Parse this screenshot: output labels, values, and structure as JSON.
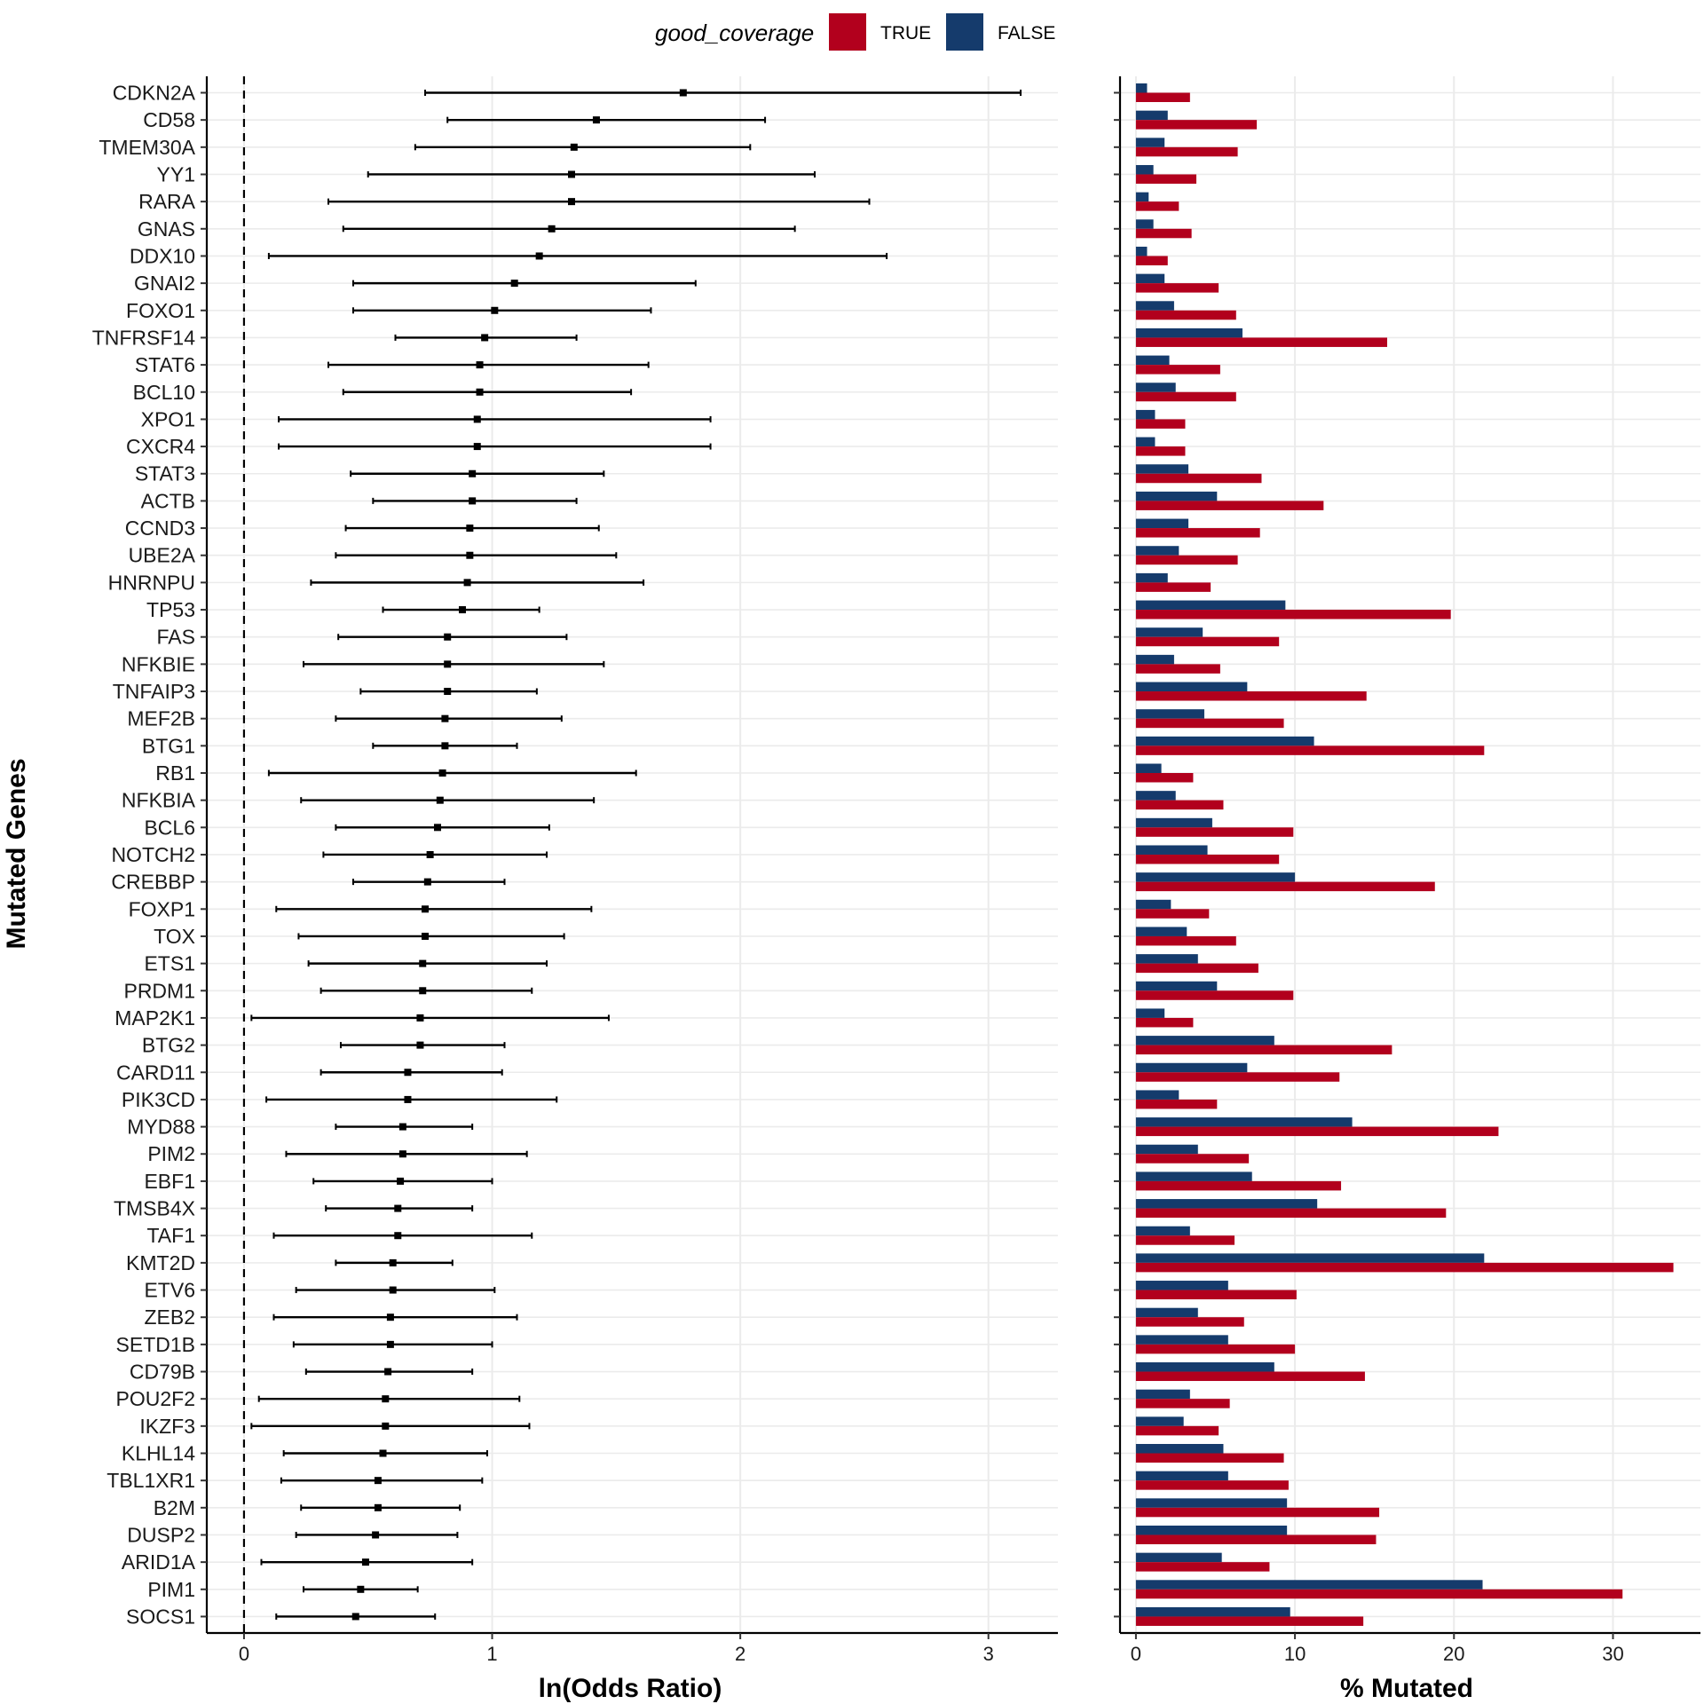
{
  "chart_data": [
    {
      "type": "forest",
      "title": "",
      "xlabel": "ln(Odds Ratio)",
      "ylabel": "Mutated Genes",
      "xlim": [
        -0.15,
        3.28
      ],
      "xticks": [
        "0",
        "1",
        "2",
        "3"
      ],
      "reference_line": 0,
      "grid": true,
      "genes": [
        "CDKN2A",
        "CD58",
        "TMEM30A",
        "YY1",
        "RARA",
        "GNAS",
        "DDX10",
        "GNAI2",
        "FOXO1",
        "TNFRSF14",
        "STAT6",
        "BCL10",
        "XPO1",
        "CXCR4",
        "STAT3",
        "ACTB",
        "CCND3",
        "UBE2A",
        "HNRNPU",
        "TP53",
        "FAS",
        "NFKBIE",
        "TNFAIP3",
        "MEF2B",
        "BTG1",
        "RB1",
        "NFKBIA",
        "BCL6",
        "NOTCH2",
        "CREBBP",
        "FOXP1",
        "TOX",
        "ETS1",
        "PRDM1",
        "MAP2K1",
        "BTG2",
        "CARD11",
        "PIK3CD",
        "MYD88",
        "PIM2",
        "EBF1",
        "TMSB4X",
        "TAF1",
        "KMT2D",
        "ETV6",
        "ZEB2",
        "SETD1B",
        "CD79B",
        "POU2F2",
        "IKZF3",
        "KLHL14",
        "TBL1XR1",
        "B2M",
        "DUSP2",
        "ARID1A",
        "PIM1",
        "SOCS1"
      ],
      "estimate": [
        1.77,
        1.42,
        1.33,
        1.32,
        1.32,
        1.24,
        1.19,
        1.09,
        1.01,
        0.97,
        0.95,
        0.95,
        0.94,
        0.94,
        0.92,
        0.92,
        0.91,
        0.91,
        0.9,
        0.88,
        0.82,
        0.82,
        0.82,
        0.81,
        0.81,
        0.8,
        0.79,
        0.78,
        0.75,
        0.74,
        0.73,
        0.73,
        0.72,
        0.72,
        0.71,
        0.71,
        0.66,
        0.66,
        0.64,
        0.64,
        0.63,
        0.62,
        0.62,
        0.6,
        0.6,
        0.59,
        0.59,
        0.58,
        0.57,
        0.57,
        0.56,
        0.54,
        0.54,
        0.53,
        0.49,
        0.47,
        0.45
      ],
      "lower": [
        0.73,
        0.82,
        0.69,
        0.5,
        0.34,
        0.4,
        0.1,
        0.44,
        0.44,
        0.61,
        0.34,
        0.4,
        0.14,
        0.14,
        0.43,
        0.52,
        0.41,
        0.37,
        0.27,
        0.56,
        0.38,
        0.24,
        0.47,
        0.37,
        0.52,
        0.1,
        0.23,
        0.37,
        0.32,
        0.44,
        0.13,
        0.22,
        0.26,
        0.31,
        0.03,
        0.39,
        0.31,
        0.09,
        0.37,
        0.17,
        0.28,
        0.33,
        0.12,
        0.37,
        0.21,
        0.12,
        0.2,
        0.25,
        0.06,
        0.03,
        0.16,
        0.15,
        0.23,
        0.21,
        0.07,
        0.24,
        0.13
      ],
      "upper": [
        3.13,
        2.1,
        2.04,
        2.3,
        2.52,
        2.22,
        2.59,
        1.82,
        1.64,
        1.34,
        1.63,
        1.56,
        1.88,
        1.88,
        1.45,
        1.34,
        1.43,
        1.5,
        1.61,
        1.19,
        1.3,
        1.45,
        1.18,
        1.28,
        1.1,
        1.58,
        1.41,
        1.23,
        1.22,
        1.05,
        1.4,
        1.29,
        1.22,
        1.16,
        1.47,
        1.05,
        1.04,
        1.26,
        0.92,
        1.14,
        1.0,
        0.92,
        1.16,
        0.84,
        1.01,
        1.1,
        1.0,
        0.92,
        1.11,
        1.15,
        0.98,
        0.96,
        0.87,
        0.86,
        0.92,
        0.7,
        0.77
      ]
    },
    {
      "type": "bar",
      "orientation": "horizontal",
      "title": "",
      "xlabel": "% Mutated",
      "ylabel": "",
      "xlim": [
        -1.0,
        35.5
      ],
      "xticks": [
        "0",
        "10",
        "20",
        "30"
      ],
      "grid": true,
      "legend": {
        "title": "good_coverage",
        "placement": "top-center",
        "entries": [
          {
            "label": "TRUE",
            "color": "#B2001D"
          },
          {
            "label": "FALSE",
            "color": "#153B6C"
          }
        ]
      },
      "categories": [
        "CDKN2A",
        "CD58",
        "TMEM30A",
        "YY1",
        "RARA",
        "GNAS",
        "DDX10",
        "GNAI2",
        "FOXO1",
        "TNFRSF14",
        "STAT6",
        "BCL10",
        "XPO1",
        "CXCR4",
        "STAT3",
        "ACTB",
        "CCND3",
        "UBE2A",
        "HNRNPU",
        "TP53",
        "FAS",
        "NFKBIE",
        "TNFAIP3",
        "MEF2B",
        "BTG1",
        "RB1",
        "NFKBIA",
        "BCL6",
        "NOTCH2",
        "CREBBP",
        "FOXP1",
        "TOX",
        "ETS1",
        "PRDM1",
        "MAP2K1",
        "BTG2",
        "CARD11",
        "PIK3CD",
        "MYD88",
        "PIM2",
        "EBF1",
        "TMSB4X",
        "TAF1",
        "KMT2D",
        "ETV6",
        "ZEB2",
        "SETD1B",
        "CD79B",
        "POU2F2",
        "IKZF3",
        "KLHL14",
        "TBL1XR1",
        "B2M",
        "DUSP2",
        "ARID1A",
        "PIM1",
        "SOCS1"
      ],
      "series": [
        {
          "name": "TRUE",
          "color": "#B2001D",
          "values": [
            3.4,
            7.6,
            6.4,
            3.8,
            2.7,
            3.5,
            2.0,
            5.2,
            6.3,
            15.8,
            5.3,
            6.3,
            3.1,
            3.1,
            7.9,
            11.8,
            7.8,
            6.4,
            4.7,
            19.8,
            9.0,
            5.3,
            14.5,
            9.3,
            21.9,
            3.6,
            5.5,
            9.9,
            9.0,
            18.8,
            4.6,
            6.3,
            7.7,
            9.9,
            3.6,
            16.1,
            12.8,
            5.1,
            22.8,
            7.1,
            12.9,
            19.5,
            6.2,
            33.8,
            10.1,
            6.8,
            10.0,
            14.4,
            5.9,
            5.2,
            9.3,
            9.6,
            15.3,
            15.1,
            8.4,
            30.6,
            14.3
          ]
        },
        {
          "name": "FALSE",
          "color": "#153B6C",
          "values": [
            0.7,
            2.0,
            1.8,
            1.1,
            0.8,
            1.1,
            0.7,
            1.8,
            2.4,
            6.7,
            2.1,
            2.5,
            1.2,
            1.2,
            3.3,
            5.1,
            3.3,
            2.7,
            2.0,
            9.4,
            4.2,
            2.4,
            7.0,
            4.3,
            11.2,
            1.6,
            2.5,
            4.8,
            4.5,
            10.0,
            2.2,
            3.2,
            3.9,
            5.1,
            1.8,
            8.7,
            7.0,
            2.7,
            13.6,
            3.9,
            7.3,
            11.4,
            3.4,
            21.9,
            5.8,
            3.9,
            5.8,
            8.7,
            3.4,
            3.0,
            5.5,
            5.8,
            9.5,
            9.5,
            5.4,
            21.8,
            9.7
          ]
        }
      ]
    }
  ]
}
